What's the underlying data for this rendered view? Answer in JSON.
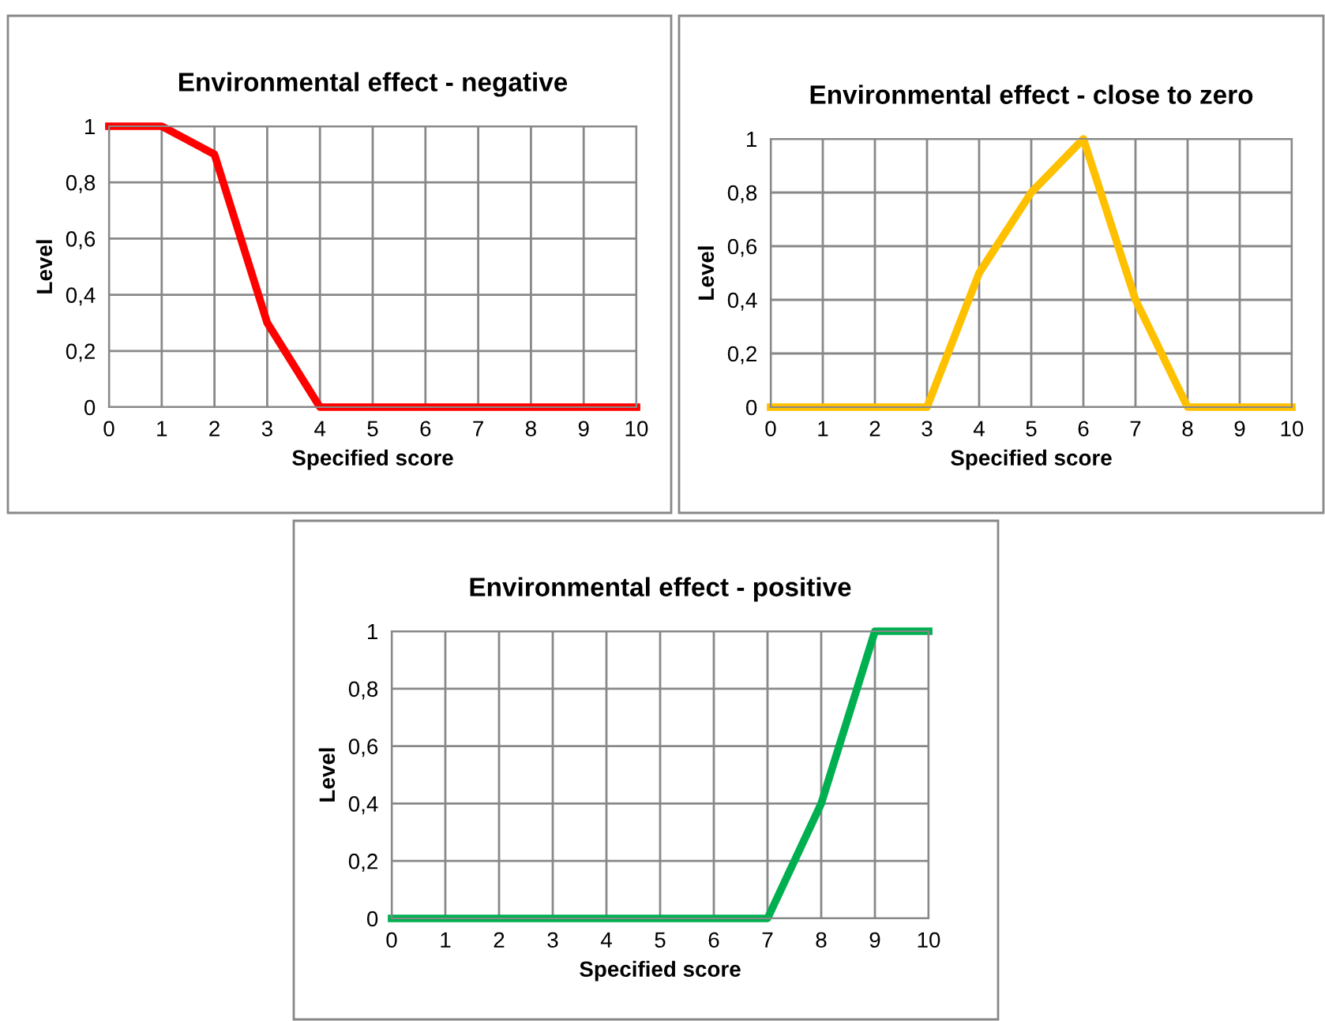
{
  "chart_data": [
    {
      "type": "line",
      "title": "Environmental effect - negative",
      "xlabel": "Specified score",
      "ylabel": "Level",
      "x": [
        0,
        1,
        2,
        3,
        4,
        5,
        6,
        7,
        8,
        9,
        10
      ],
      "series": [
        {
          "color": "#ff0000",
          "values": [
            1,
            1,
            0.9,
            0.3,
            0,
            0,
            0,
            0,
            0,
            0,
            0
          ]
        }
      ],
      "xlim": [
        0,
        10
      ],
      "xticks": [
        0,
        1,
        2,
        3,
        4,
        5,
        6,
        7,
        8,
        9,
        10
      ],
      "ylim": [
        0,
        1
      ],
      "yticks": [
        0,
        {
          "value": 0.2,
          "label": "0,2"
        },
        {
          "value": 0.4,
          "label": "0,4"
        },
        {
          "value": 0.6,
          "label": "0,6"
        },
        {
          "value": 0.8,
          "label": "0,8"
        },
        1
      ],
      "grid": true,
      "legend": false
    },
    {
      "type": "line",
      "title": "Environmental effect - close to zero",
      "xlabel": "Specified score",
      "ylabel": "Level",
      "x": [
        0,
        1,
        2,
        3,
        4,
        5,
        6,
        7,
        8,
        9,
        10
      ],
      "series": [
        {
          "color": "#ffc000",
          "values": [
            0,
            0,
            0,
            0,
            0.5,
            0.8,
            1,
            0.4,
            0,
            0,
            0
          ]
        }
      ],
      "xlim": [
        0,
        10
      ],
      "xticks": [
        0,
        1,
        2,
        3,
        4,
        5,
        6,
        7,
        8,
        9,
        10
      ],
      "ylim": [
        0,
        1
      ],
      "yticks": [
        0,
        {
          "value": 0.2,
          "label": "0,2"
        },
        {
          "value": 0.4,
          "label": "0,4"
        },
        {
          "value": 0.6,
          "label": "0,6"
        },
        {
          "value": 0.8,
          "label": "0,8"
        },
        1
      ],
      "grid": true,
      "legend": false
    },
    {
      "type": "line",
      "title": "Environmental effect - positive",
      "xlabel": "Specified score",
      "ylabel": "Level",
      "x": [
        0,
        1,
        2,
        3,
        4,
        5,
        6,
        7,
        8,
        9,
        10
      ],
      "series": [
        {
          "color": "#00b050",
          "values": [
            0,
            0,
            0,
            0,
            0,
            0,
            0,
            0,
            0.4,
            1,
            1
          ]
        }
      ],
      "xlim": [
        0,
        10
      ],
      "xticks": [
        0,
        1,
        2,
        3,
        4,
        5,
        6,
        7,
        8,
        9,
        10
      ],
      "ylim": [
        0,
        1
      ],
      "yticks": [
        0,
        {
          "value": 0.2,
          "label": "0,2"
        },
        {
          "value": 0.4,
          "label": "0,4"
        },
        {
          "value": 0.6,
          "label": "0,6"
        },
        {
          "value": 0.8,
          "label": "0,8"
        },
        1
      ],
      "grid": true,
      "legend": false
    }
  ]
}
